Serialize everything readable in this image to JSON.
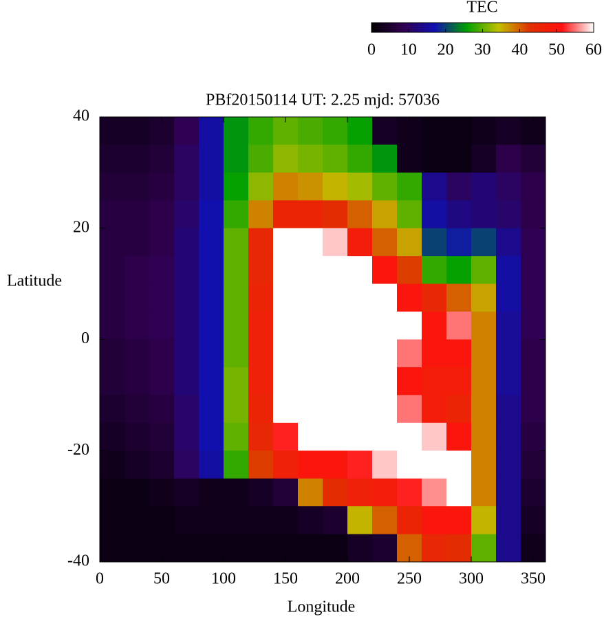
{
  "chart_data": {
    "type": "heatmap",
    "title": "PBf20150114  UT: 2.25  mjd: 57036",
    "x_label": "Longitude",
    "y_label": "Latitude",
    "colorbar_label": "TEC",
    "xlim": [
      0,
      360
    ],
    "ylim": [
      -40,
      40
    ],
    "xticks": [
      0,
      50,
      100,
      150,
      200,
      250,
      300,
      350
    ],
    "yticks": [
      -40,
      -20,
      0,
      20,
      40
    ],
    "clim": [
      0,
      60
    ],
    "cticks": [
      0,
      10,
      20,
      30,
      40,
      50,
      60
    ],
    "colormap": [
      "#000000",
      "#300050",
      "#1010b0",
      "#00a000",
      "#c0c000",
      "#e03000",
      "#ff1010",
      "#ffffff"
    ],
    "x": [
      10,
      30,
      50,
      70,
      90,
      110,
      130,
      150,
      170,
      190,
      210,
      230,
      250,
      270,
      290,
      310,
      330,
      350
    ],
    "y": [
      37.5,
      32.5,
      27.5,
      22.5,
      17.5,
      12.5,
      7.5,
      2.5,
      -2.5,
      -7.5,
      -12.5,
      -17.5,
      -22.5,
      -27.5,
      -32.5,
      -37.5
    ],
    "z": [
      [
        4,
        4,
        5,
        9,
        16,
        25,
        28,
        30,
        29,
        28,
        26,
        4,
        3,
        2,
        2,
        3,
        4,
        3
      ],
      [
        5,
        5,
        6,
        10,
        16,
        25,
        29,
        32,
        31,
        30,
        28,
        25,
        3,
        2,
        2,
        4,
        8,
        6
      ],
      [
        6,
        6,
        7,
        10,
        16,
        26,
        32,
        38,
        37,
        35,
        33,
        30,
        28,
        14,
        10,
        12,
        10,
        8
      ],
      [
        7,
        7,
        8,
        11,
        17,
        28,
        38,
        46,
        46,
        44,
        40,
        36,
        30,
        16,
        13,
        12,
        11,
        8
      ],
      [
        7,
        7,
        8,
        12,
        17,
        30,
        45,
        60,
        60,
        58,
        48,
        40,
        36,
        20,
        18,
        20,
        14,
        9
      ],
      [
        7,
        8,
        9,
        12,
        17,
        30,
        45,
        60,
        60,
        60,
        60,
        50,
        42,
        28,
        26,
        30,
        16,
        9
      ],
      [
        7,
        8,
        9,
        12,
        17,
        30,
        46,
        60,
        60,
        60,
        60,
        60,
        50,
        45,
        40,
        36,
        16,
        9
      ],
      [
        7,
        8,
        9,
        12,
        17,
        30,
        47,
        60,
        60,
        60,
        60,
        60,
        60,
        50,
        55,
        38,
        15,
        9
      ],
      [
        6,
        7,
        8,
        12,
        17,
        30,
        47,
        60,
        60,
        60,
        60,
        60,
        55,
        50,
        50,
        38,
        15,
        8
      ],
      [
        6,
        7,
        8,
        12,
        17,
        31,
        47,
        60,
        60,
        60,
        60,
        60,
        50,
        48,
        48,
        38,
        15,
        8
      ],
      [
        5,
        6,
        7,
        11,
        17,
        31,
        46,
        60,
        60,
        60,
        60,
        60,
        55,
        48,
        46,
        38,
        14,
        8
      ],
      [
        4,
        5,
        6,
        11,
        17,
        30,
        45,
        52,
        60,
        60,
        60,
        60,
        60,
        58,
        50,
        38,
        14,
        7
      ],
      [
        3,
        4,
        5,
        10,
        16,
        28,
        42,
        47,
        50,
        50,
        52,
        58,
        60,
        60,
        60,
        38,
        14,
        6
      ],
      [
        2,
        2,
        3,
        4,
        3,
        3,
        4,
        6,
        38,
        44,
        47,
        48,
        52,
        56,
        60,
        38,
        14,
        5
      ],
      [
        2,
        2,
        2,
        3,
        3,
        3,
        3,
        3,
        4,
        5,
        35,
        40,
        46,
        50,
        50,
        35,
        14,
        4
      ],
      [
        2,
        2,
        2,
        2,
        2,
        2,
        2,
        2,
        2,
        2,
        4,
        5,
        40,
        45,
        44,
        30,
        14,
        3
      ]
    ]
  }
}
